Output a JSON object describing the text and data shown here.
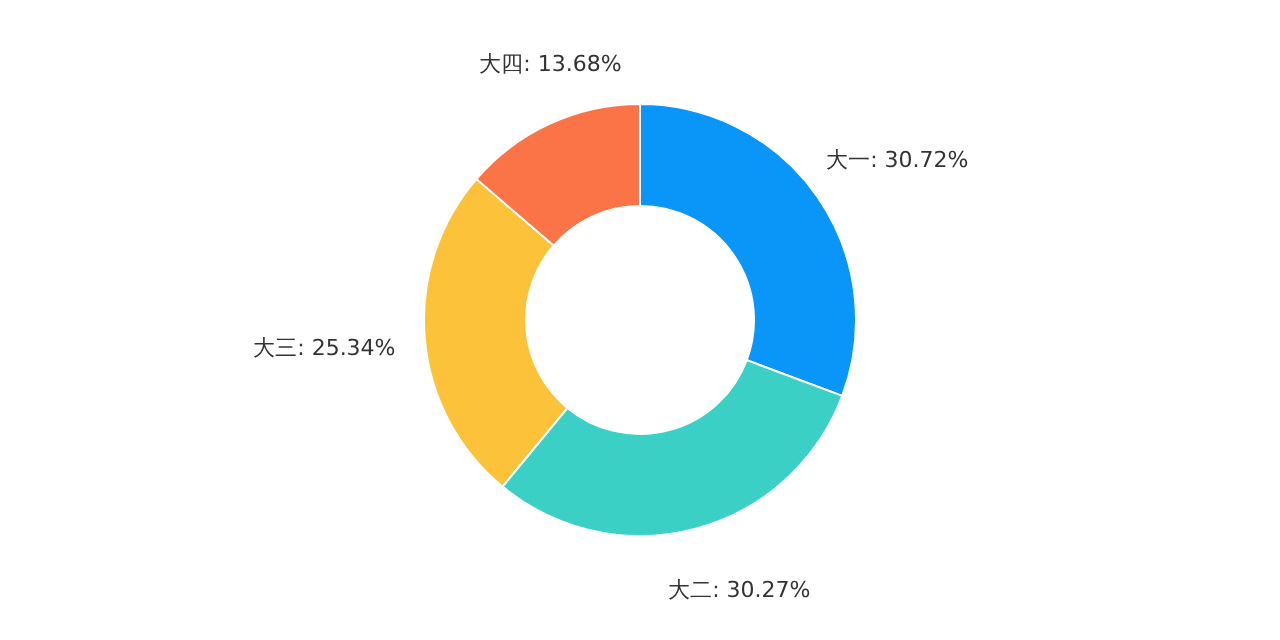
{
  "chart_data": {
    "type": "donut",
    "categories": [
      "大一",
      "大二",
      "大三",
      "大四"
    ],
    "values": [
      30.72,
      30.27,
      25.34,
      13.68
    ],
    "colors": [
      "#0a96f8",
      "#3ad0c6",
      "#fcc23a",
      "#fa7447"
    ],
    "value_labels": [
      ": 30.72%",
      ": 30.27%",
      ": 25.34%",
      ": 13.68%"
    ]
  }
}
